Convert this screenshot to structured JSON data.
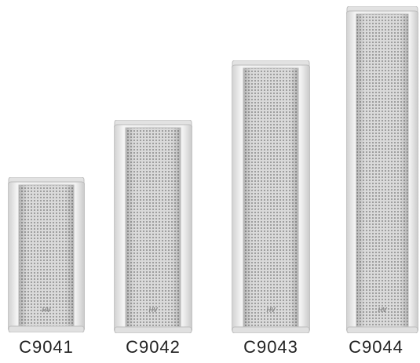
{
  "products": [
    {
      "model": "C9041",
      "logo": "HV"
    },
    {
      "model": "C9042",
      "logo": "HV"
    },
    {
      "model": "C9043",
      "logo": "HV"
    },
    {
      "model": "C9044",
      "logo": "HV"
    }
  ],
  "colors": {
    "housing": "#e8e8e8",
    "housing_edge": "#c4c4c4",
    "grille": "#d2d2d2",
    "logo": "#9a9a9a",
    "label": "#222222"
  }
}
